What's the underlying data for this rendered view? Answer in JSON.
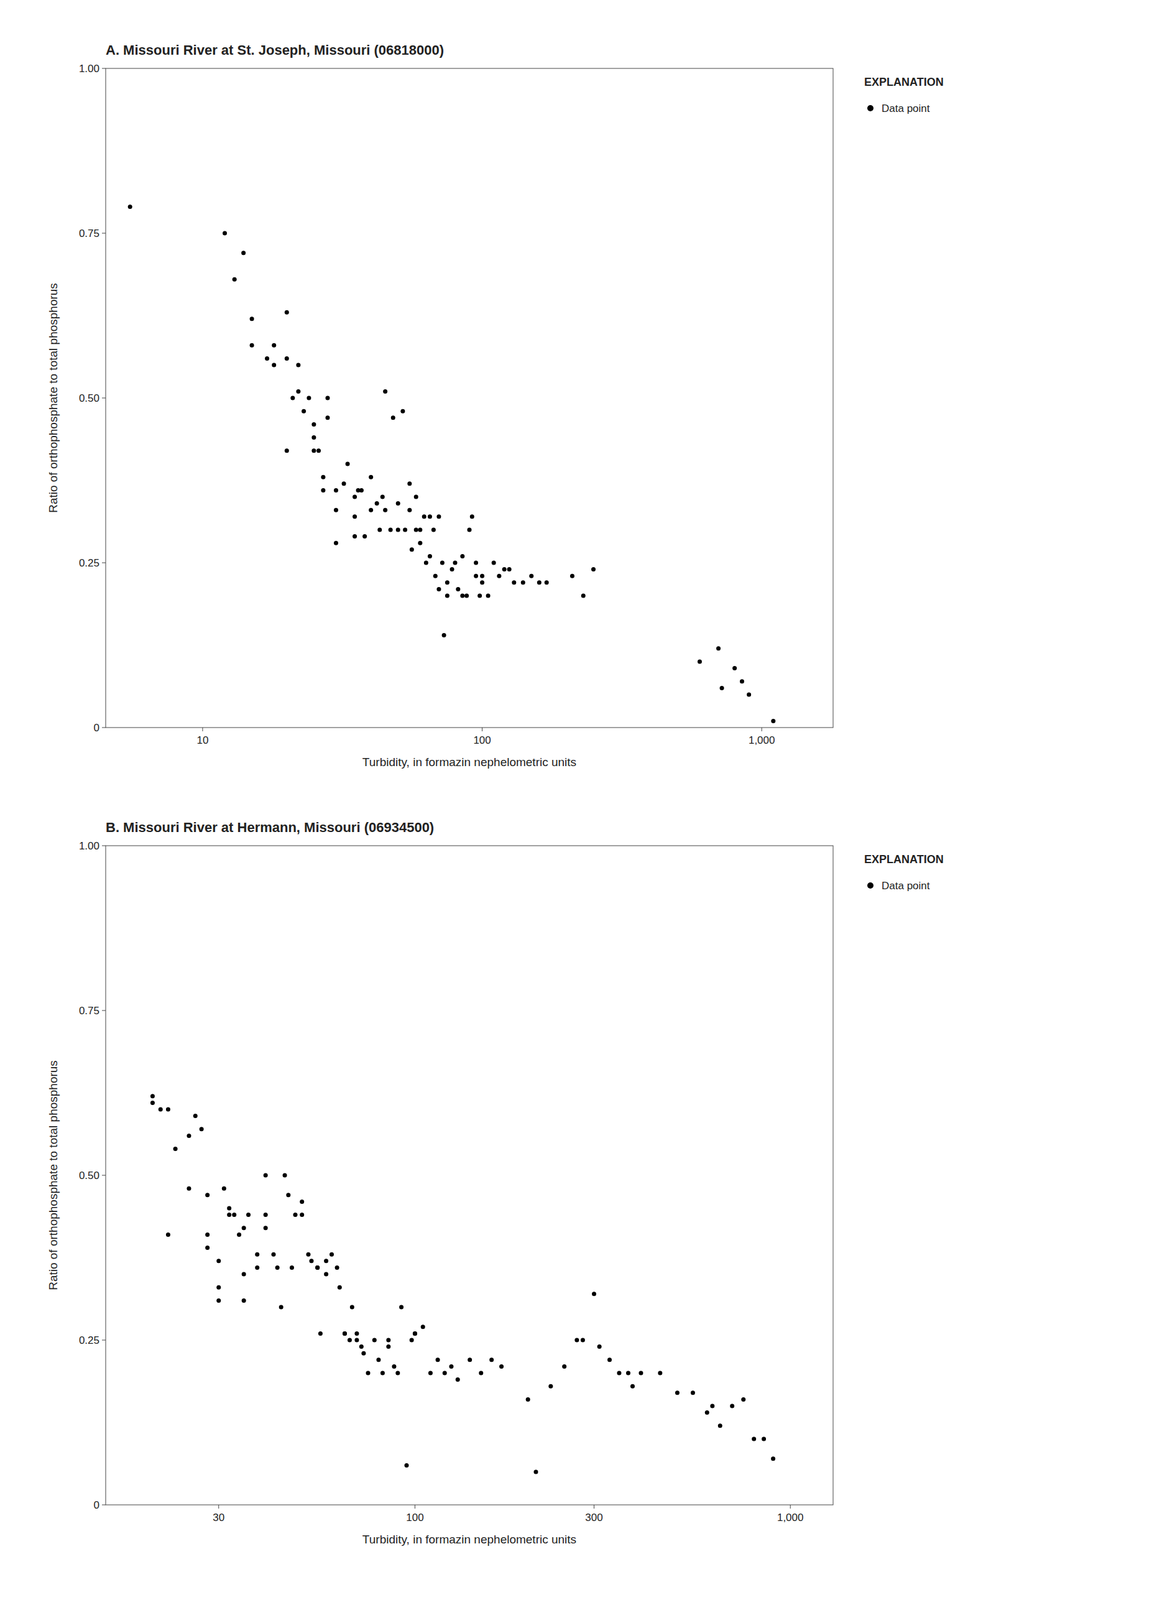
{
  "chart_data": [
    {
      "type": "scatter",
      "title": "A. Missouri River at St. Joseph, Missouri (06818000)",
      "x_label": "Turbidity, in formazin nephelometric units",
      "y_label": "Ratio of orthophosphate to total phosphorus",
      "log": "x",
      "xlim": [
        4.5,
        1800
      ],
      "ylim": [
        0,
        1.0
      ],
      "xticks": [
        10,
        100,
        {
          "value": 1000,
          "label": "1,000"
        }
      ],
      "yticks": [
        0,
        0.25,
        {
          "value": 0.5,
          "label": "0.50"
        },
        {
          "value": 0.75,
          "label": "0.75"
        },
        {
          "value": 1.0,
          "label": "1.00"
        }
      ],
      "legend": "right",
      "legend_title": "EXPLANATION",
      "series": [
        {
          "name": "Data point",
          "color": "black",
          "marker": "dot",
          "x": [
            5.5,
            12,
            13,
            14,
            15,
            15,
            17,
            18,
            18,
            20,
            20,
            20,
            21,
            22,
            22,
            23,
            24,
            25,
            25,
            25,
            26,
            27,
            27,
            28,
            28,
            30,
            30,
            30,
            32,
            33,
            35,
            35,
            35,
            36,
            37,
            38,
            40,
            40,
            42,
            43,
            44,
            45,
            45,
            47,
            48,
            50,
            50,
            52,
            53,
            55,
            55,
            56,
            58,
            58,
            60,
            60,
            62,
            63,
            65,
            65,
            67,
            68,
            70,
            70,
            72,
            73,
            75,
            75,
            78,
            80,
            82,
            85,
            85,
            88,
            90,
            92,
            95,
            95,
            98,
            100,
            100,
            105,
            110,
            115,
            120,
            125,
            130,
            140,
            150,
            160,
            170,
            210,
            230,
            250,
            600,
            700,
            720,
            800,
            850,
            900,
            1100
          ],
          "values": [
            0.79,
            0.75,
            0.68,
            0.72,
            0.62,
            0.58,
            0.56,
            0.55,
            0.58,
            0.42,
            0.56,
            0.63,
            0.5,
            0.51,
            0.55,
            0.48,
            0.5,
            0.44,
            0.42,
            0.46,
            0.42,
            0.38,
            0.36,
            0.47,
            0.5,
            0.33,
            0.36,
            0.28,
            0.37,
            0.4,
            0.35,
            0.32,
            0.29,
            0.36,
            0.36,
            0.29,
            0.38,
            0.33,
            0.34,
            0.3,
            0.35,
            0.51,
            0.33,
            0.3,
            0.47,
            0.3,
            0.34,
            0.48,
            0.3,
            0.33,
            0.37,
            0.27,
            0.3,
            0.35,
            0.28,
            0.3,
            0.32,
            0.25,
            0.32,
            0.26,
            0.3,
            0.23,
            0.21,
            0.32,
            0.25,
            0.14,
            0.22,
            0.2,
            0.24,
            0.25,
            0.21,
            0.2,
            0.26,
            0.2,
            0.3,
            0.32,
            0.25,
            0.23,
            0.2,
            0.22,
            0.23,
            0.2,
            0.25,
            0.23,
            0.24,
            0.24,
            0.22,
            0.22,
            0.23,
            0.22,
            0.22,
            0.23,
            0.2,
            0.24,
            0.1,
            0.12,
            0.06,
            0.09,
            0.07,
            0.05,
            0.01
          ]
        }
      ]
    },
    {
      "type": "scatter",
      "title": "B. Missouri River at Hermann, Missouri (06934500)",
      "x_label": "Turbidity, in formazin nephelometric units",
      "y_label": "Ratio of orthophosphate to total phosphorus",
      "log": "x",
      "xlim": [
        15,
        1300
      ],
      "ylim": [
        0,
        1.0
      ],
      "xticks": [
        30,
        100,
        300,
        {
          "value": 1000,
          "label": "1,000"
        }
      ],
      "yticks": [
        0,
        0.25,
        {
          "value": 0.5,
          "label": "0.50"
        },
        {
          "value": 0.75,
          "label": "0.75"
        },
        {
          "value": 1.0,
          "label": "1.00"
        }
      ],
      "legend": "right",
      "legend_title": "EXPLANATION",
      "series": [
        {
          "name": "Data point",
          "color": "black",
          "marker": "dot",
          "x": [
            20,
            20,
            21,
            22,
            22,
            23,
            25,
            25,
            26,
            27,
            28,
            28,
            28,
            30,
            30,
            30,
            31,
            32,
            32,
            33,
            34,
            35,
            35,
            35,
            36,
            38,
            38,
            40,
            40,
            40,
            42,
            43,
            44,
            45,
            46,
            47,
            48,
            50,
            50,
            52,
            53,
            55,
            55,
            56,
            58,
            58,
            60,
            62,
            63,
            65,
            65,
            67,
            68,
            70,
            70,
            72,
            73,
            75,
            78,
            80,
            82,
            85,
            85,
            88,
            90,
            92,
            95,
            98,
            100,
            100,
            105,
            110,
            115,
            120,
            125,
            130,
            140,
            150,
            160,
            170,
            200,
            210,
            230,
            250,
            270,
            280,
            300,
            310,
            330,
            350,
            370,
            380,
            400,
            450,
            500,
            550,
            600,
            620,
            650,
            700,
            750,
            800,
            850,
            900
          ],
          "values": [
            0.62,
            0.61,
            0.6,
            0.41,
            0.6,
            0.54,
            0.56,
            0.48,
            0.59,
            0.57,
            0.47,
            0.39,
            0.41,
            0.31,
            0.37,
            0.33,
            0.48,
            0.44,
            0.45,
            0.44,
            0.41,
            0.31,
            0.35,
            0.42,
            0.44,
            0.36,
            0.38,
            0.44,
            0.42,
            0.5,
            0.38,
            0.36,
            0.3,
            0.5,
            0.47,
            0.36,
            0.44,
            0.44,
            0.46,
            0.38,
            0.37,
            0.36,
            0.36,
            0.26,
            0.35,
            0.37,
            0.38,
            0.36,
            0.33,
            0.26,
            0.26,
            0.25,
            0.3,
            0.26,
            0.25,
            0.24,
            0.23,
            0.2,
            0.25,
            0.22,
            0.2,
            0.24,
            0.25,
            0.21,
            0.2,
            0.3,
            0.06,
            0.25,
            0.26,
            0.26,
            0.27,
            0.2,
            0.22,
            0.2,
            0.21,
            0.19,
            0.22,
            0.2,
            0.22,
            0.21,
            0.16,
            0.05,
            0.18,
            0.21,
            0.25,
            0.25,
            0.32,
            0.24,
            0.22,
            0.2,
            0.2,
            0.18,
            0.2,
            0.2,
            0.17,
            0.17,
            0.14,
            0.15,
            0.12,
            0.15,
            0.16,
            0.1,
            0.1,
            0.07
          ]
        }
      ]
    }
  ]
}
